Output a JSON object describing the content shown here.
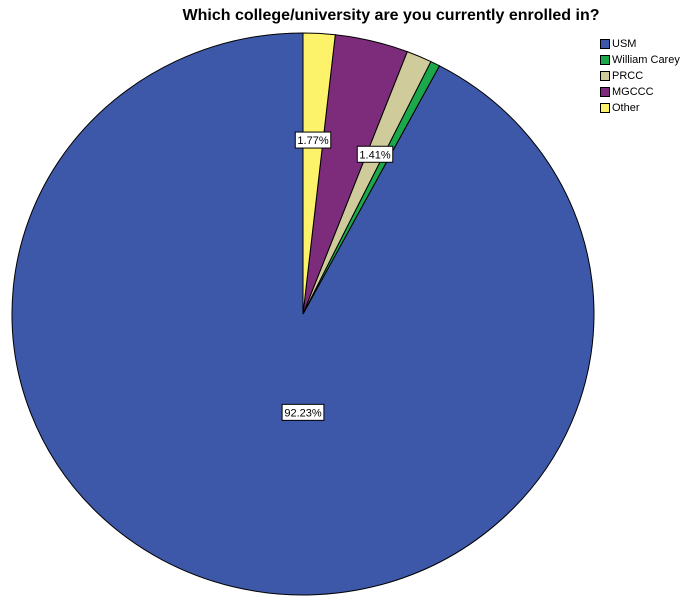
{
  "chart_data": {
    "type": "pie",
    "title": "Which college/university are you currently enrolled in?",
    "start_angle_deg": 0,
    "direction": "counterclockwise",
    "slices": [
      {
        "name": "USM",
        "value": 92.23,
        "color": "#3D58A9",
        "label": "92.23%"
      },
      {
        "name": "William Carey",
        "value": 0.53,
        "color": "#1BA84B",
        "label": ""
      },
      {
        "name": "PRCC",
        "value": 1.41,
        "color": "#CFCB9A",
        "label": "1.41%"
      },
      {
        "name": "MGCCC",
        "value": 4.06,
        "color": "#7D2C7B",
        "label": ""
      },
      {
        "name": "Other",
        "value": 1.77,
        "color": "#FDF36B",
        "label": "1.77%"
      }
    ],
    "legend": {
      "position": "top-right"
    }
  }
}
